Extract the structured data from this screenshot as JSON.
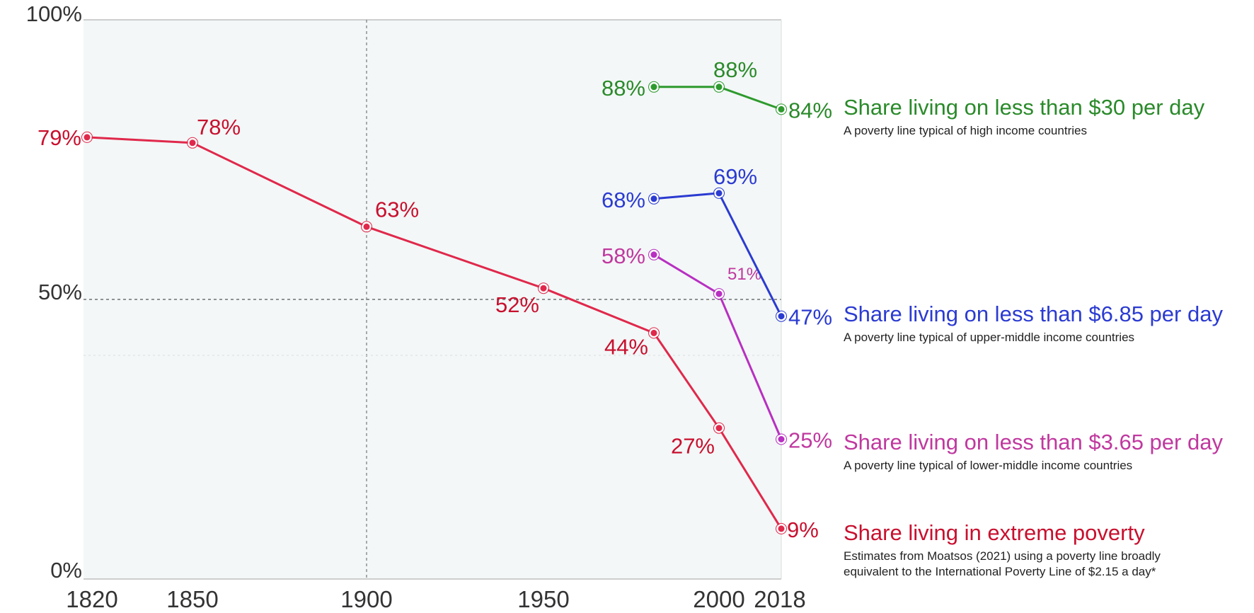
{
  "chart_data": {
    "type": "line",
    "x_ticks": [
      "1820",
      "1850",
      "1900",
      "1950",
      "2000",
      "2018"
    ],
    "y_ticks": [
      "0%",
      "50%",
      "100%"
    ],
    "ylim": [
      0,
      100
    ],
    "grid": true,
    "series": [
      {
        "id": "extreme",
        "name": "Share living in extreme poverty",
        "subtitle_lines": [
          "Estimates from Moatsos (2021) using a poverty line broadly",
          "equivalent to the International Poverty Line of $2.15 a day*"
        ],
        "color": "#e0284b",
        "label_color": "#c8102e",
        "end_label": "9%",
        "points": [
          {
            "x": 1820,
            "y": 79,
            "label": "79%"
          },
          {
            "x": 1850,
            "y": 78,
            "label": "78%"
          },
          {
            "x": 1900,
            "y": 63,
            "label": "63%"
          },
          {
            "x": 1950,
            "y": 52,
            "label": "52%"
          },
          {
            "x": 1980,
            "y": 44,
            "label": "44%"
          },
          {
            "x": 2000,
            "y": 27,
            "label": "27%"
          },
          {
            "x": 2018,
            "y": 9,
            "label": "9%"
          }
        ]
      },
      {
        "id": "l365",
        "name": "Share living on less than $3.65 per day",
        "subtitle_lines": [
          "A poverty line typical of lower-middle income countries"
        ],
        "color": "#b82fc2",
        "label_color": "#c0389f",
        "end_label": "25%",
        "points": [
          {
            "x": 1980,
            "y": 58,
            "label": "58%"
          },
          {
            "x": 2000,
            "y": 51,
            "label": "51%"
          },
          {
            "x": 2018,
            "y": 25,
            "label": "25%"
          }
        ]
      },
      {
        "id": "l685",
        "name": "Share living on less than $6.85 per day",
        "subtitle_lines": [
          "A poverty line typical of upper-middle income countries"
        ],
        "color": "#2b3bd1",
        "label_color": "#2b3bd1",
        "end_label": "47%",
        "points": [
          {
            "x": 1980,
            "y": 68,
            "label": "68%"
          },
          {
            "x": 2000,
            "y": 69,
            "label": "69%"
          },
          {
            "x": 2018,
            "y": 47,
            "label": "47%"
          }
        ]
      },
      {
        "id": "l30",
        "name": "Share living on less than $30 per day",
        "subtitle_lines": [
          "A poverty line typical of high income countries"
        ],
        "color": "#2d9a2d",
        "label_color": "#2a8a2a",
        "end_label": "84%",
        "points": [
          {
            "x": 1980,
            "y": 88,
            "label": "88%"
          },
          {
            "x": 2000,
            "y": 88,
            "label": "88%"
          },
          {
            "x": 2018,
            "y": 84,
            "label": "84%"
          }
        ]
      }
    ]
  }
}
